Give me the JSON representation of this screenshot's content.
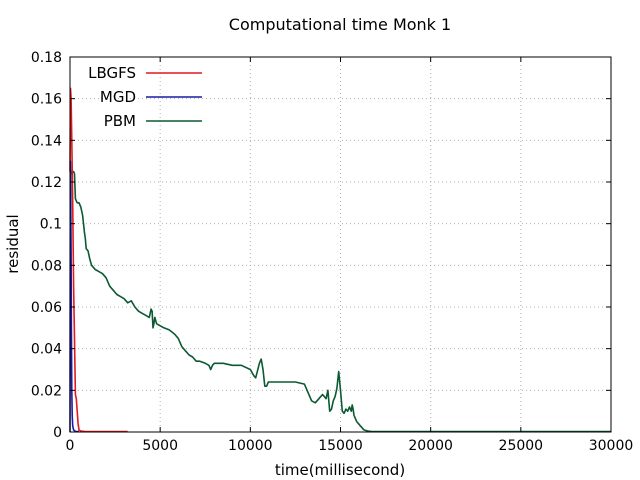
{
  "chart_data": {
    "type": "line",
    "title": "Computational time Monk 1",
    "xlabel": "time(millisecond)",
    "ylabel": "residual",
    "xlim": [
      0,
      30000
    ],
    "ylim": [
      0,
      0.18
    ],
    "xticks": [
      0,
      5000,
      10000,
      15000,
      20000,
      25000,
      30000
    ],
    "xtick_labels": [
      "0",
      "5000",
      "10000",
      "15000",
      "20000",
      "25000",
      "30000"
    ],
    "yticks": [
      0,
      0.02,
      0.04,
      0.06,
      0.08,
      0.1,
      0.12,
      0.14,
      0.16,
      0.18
    ],
    "ytick_labels": [
      "0",
      "0.02",
      "0.04",
      "0.06",
      "0.08",
      "0.1",
      "0.12",
      "0.14",
      "0.16",
      "0.18"
    ],
    "grid": true,
    "legend_position": "top-left",
    "series": [
      {
        "name": "LBGFS",
        "color": "#e0191e",
        "x": [
          0,
          30,
          60,
          100,
          150,
          200,
          250,
          300,
          350,
          400,
          450,
          500,
          600,
          800,
          1200,
          2000,
          3200
        ],
        "y": [
          0.125,
          0.165,
          0.16,
          0.14,
          0.11,
          0.07,
          0.045,
          0.018,
          0.016,
          0.01,
          0.004,
          0.001,
          0.0005,
          0.0003,
          0.0002,
          0.0002,
          0.0002
        ]
      },
      {
        "name": "MGD",
        "color": "#1a1aa6",
        "x": [
          0,
          20,
          40,
          60,
          80,
          100,
          120,
          150,
          200,
          300,
          500
        ],
        "y": [
          0.0,
          0.13,
          0.115,
          0.085,
          0.05,
          0.02,
          0.008,
          0.003,
          0.001,
          0.0003,
          0.0002
        ]
      },
      {
        "name": "PBM",
        "color": "#0b5a32",
        "x": [
          0,
          80,
          100,
          150,
          200,
          250,
          300,
          350,
          400,
          500,
          600,
          700,
          750,
          800,
          850,
          900,
          1000,
          1100,
          1200,
          1400,
          1600,
          1800,
          2000,
          2200,
          2400,
          2600,
          2800,
          3000,
          3200,
          3400,
          3600,
          3800,
          4000,
          4200,
          4400,
          4500,
          4550,
          4600,
          4650,
          4700,
          4800,
          5000,
          5200,
          5500,
          5800,
          6000,
          6200,
          6400,
          6600,
          6800,
          7000,
          7200,
          7500,
          7700,
          7800,
          7900,
          8000,
          8200,
          8500,
          9000,
          9500,
          10000,
          10200,
          10300,
          10500,
          10600,
          10700,
          10800,
          10900,
          11000,
          11200,
          11500,
          12000,
          12500,
          13000,
          13200,
          13400,
          13600,
          13800,
          14000,
          14200,
          14300,
          14400,
          14500,
          14600,
          14700,
          14800,
          14900,
          15000,
          15100,
          15200,
          15300,
          15400,
          15500,
          15600,
          15650,
          15700,
          15750,
          15800,
          15900,
          16000,
          16100,
          16200,
          16300,
          16500,
          16700,
          17000,
          18000,
          20000,
          25000,
          30000
        ],
        "y": [
          0.125,
          0.125,
          0.124,
          0.125,
          0.125,
          0.124,
          0.112,
          0.111,
          0.11,
          0.11,
          0.108,
          0.104,
          0.1,
          0.096,
          0.093,
          0.088,
          0.087,
          0.083,
          0.08,
          0.078,
          0.077,
          0.076,
          0.074,
          0.07,
          0.068,
          0.066,
          0.065,
          0.064,
          0.062,
          0.063,
          0.06,
          0.058,
          0.057,
          0.056,
          0.055,
          0.059,
          0.058,
          0.05,
          0.052,
          0.055,
          0.052,
          0.051,
          0.05,
          0.049,
          0.047,
          0.045,
          0.041,
          0.039,
          0.037,
          0.036,
          0.034,
          0.034,
          0.033,
          0.032,
          0.03,
          0.032,
          0.033,
          0.033,
          0.033,
          0.032,
          0.032,
          0.03,
          0.027,
          0.026,
          0.033,
          0.035,
          0.03,
          0.022,
          0.022,
          0.024,
          0.024,
          0.024,
          0.024,
          0.024,
          0.023,
          0.019,
          0.015,
          0.014,
          0.016,
          0.018,
          0.016,
          0.02,
          0.01,
          0.011,
          0.015,
          0.017,
          0.021,
          0.029,
          0.02,
          0.01,
          0.009,
          0.011,
          0.01,
          0.012,
          0.01,
          0.013,
          0.011,
          0.008,
          0.007,
          0.005,
          0.004,
          0.003,
          0.002,
          0.001,
          0.0005,
          0.0003,
          0.0002,
          0.0002,
          0.0002,
          0.0002,
          0.0002
        ]
      }
    ]
  }
}
